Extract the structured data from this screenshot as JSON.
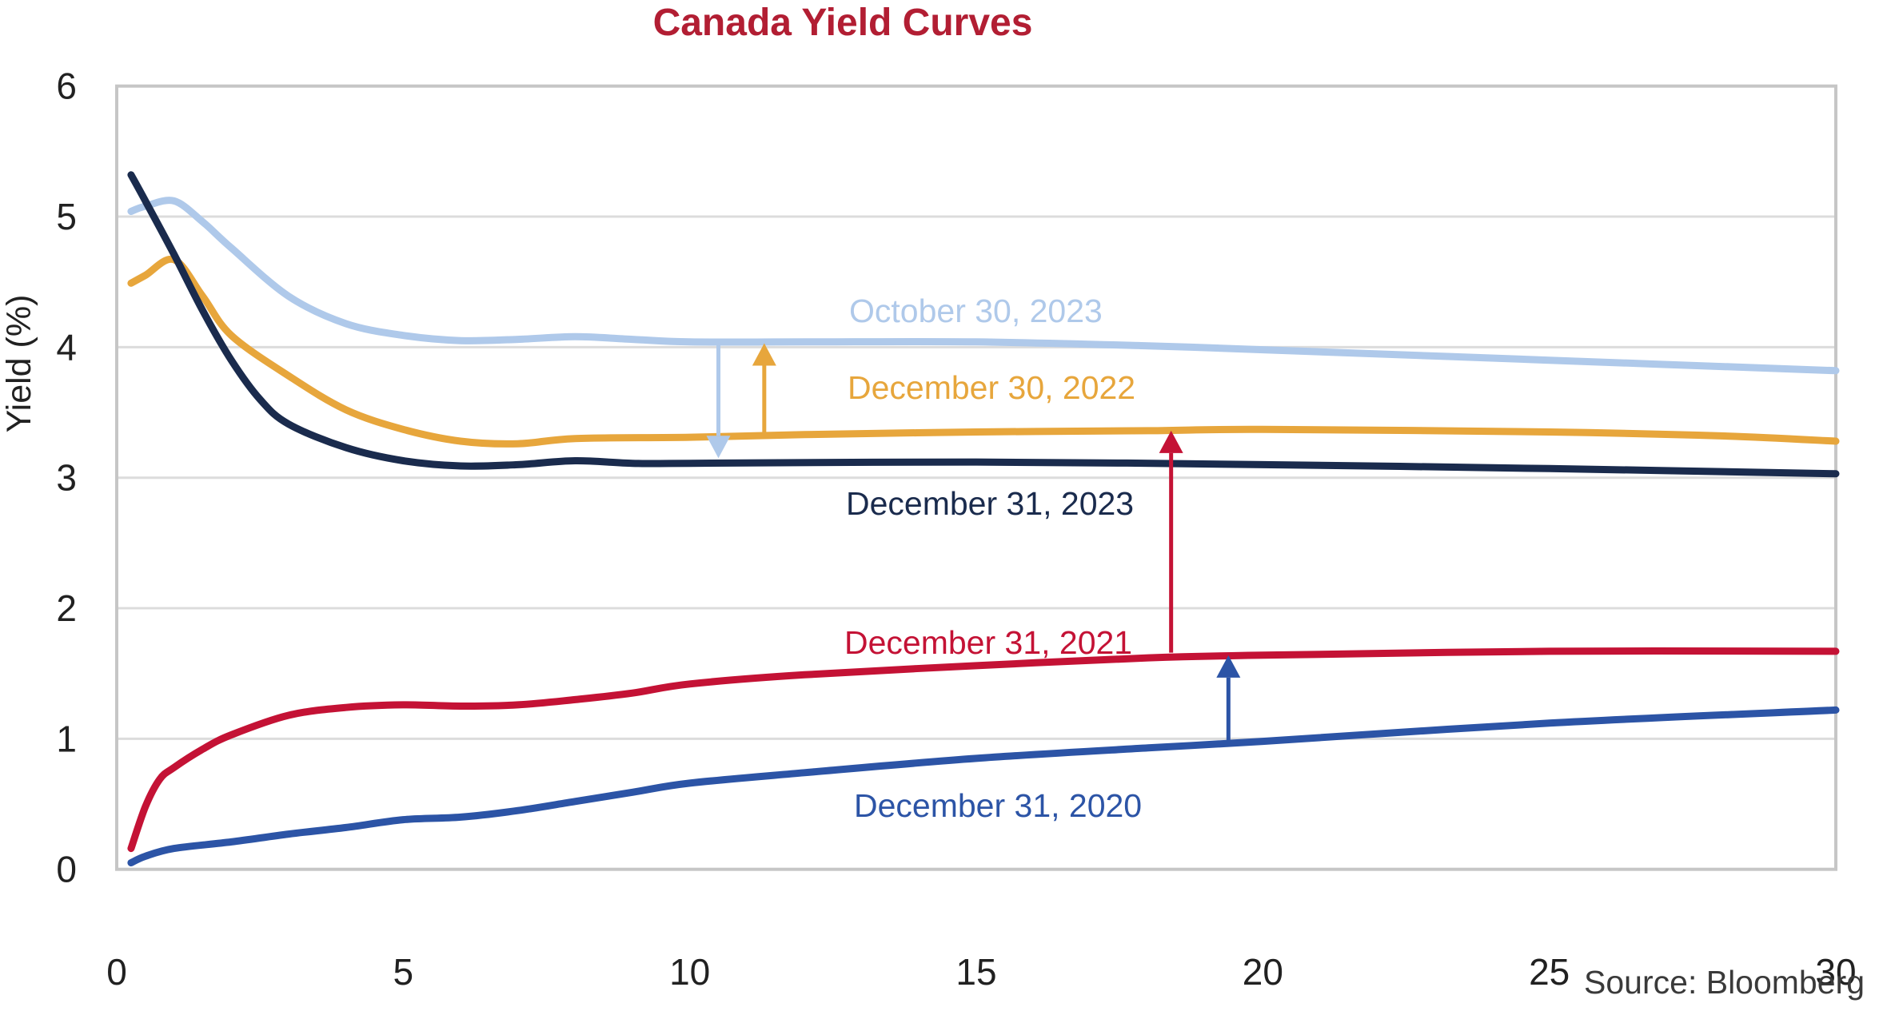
{
  "title": "Canada Yield Curves",
  "source": "Source: Bloomberg",
  "axes": {
    "ylabel": "Yield (%)",
    "x_ticks": [
      "0",
      "5",
      "10",
      "15",
      "20",
      "25",
      "30"
    ],
    "x_tick_values": [
      0,
      5,
      10,
      15,
      20,
      25,
      30
    ],
    "y_ticks": [
      "0",
      "1",
      "2",
      "3",
      "4",
      "5",
      "6"
    ],
    "y_tick_values": [
      0,
      1,
      2,
      3,
      4,
      5,
      6
    ]
  },
  "colors": {
    "title": "#B21E33",
    "light_blue": "#AFC9EA",
    "orange": "#E7A63C",
    "navy": "#1A2B4D",
    "red": "#C41235",
    "blue": "#2C54A6",
    "grid": "#DCDCDC",
    "border": "#C6C6C6",
    "tick_text": "#212121",
    "source_text": "#3A3A3A"
  },
  "chart_data": {
    "type": "line",
    "title": "Canada Yield Curves",
    "xlabel": "",
    "ylabel": "Yield (%)",
    "xlim": [
      0,
      30
    ],
    "ylim": [
      0,
      6
    ],
    "grid": "horizontal-only",
    "legend": "inline-labels",
    "series": [
      {
        "name": "October 30, 2023",
        "color_key": "light_blue",
        "points": [
          [
            0.25,
            5.04
          ],
          [
            0.5,
            5.08
          ],
          [
            1,
            5.12
          ],
          [
            1.5,
            4.96
          ],
          [
            2,
            4.76
          ],
          [
            3,
            4.39
          ],
          [
            4,
            4.18
          ],
          [
            5,
            4.09
          ],
          [
            6,
            4.05
          ],
          [
            7,
            4.06
          ],
          [
            8,
            4.08
          ],
          [
            9,
            4.06
          ],
          [
            10,
            4.04
          ],
          [
            12,
            4.04
          ],
          [
            15,
            4.04
          ],
          [
            18,
            4.01
          ],
          [
            20,
            3.98
          ],
          [
            25,
            3.9
          ],
          [
            30,
            3.82
          ]
        ]
      },
      {
        "name": "December 30, 2022",
        "color_key": "orange",
        "points": [
          [
            0.25,
            4.49
          ],
          [
            0.5,
            4.55
          ],
          [
            1,
            4.67
          ],
          [
            1.5,
            4.39
          ],
          [
            2,
            4.09
          ],
          [
            3,
            3.78
          ],
          [
            4,
            3.52
          ],
          [
            5,
            3.37
          ],
          [
            6,
            3.28
          ],
          [
            7,
            3.26
          ],
          [
            8,
            3.3
          ],
          [
            10,
            3.31
          ],
          [
            12,
            3.33
          ],
          [
            15,
            3.35
          ],
          [
            18,
            3.36
          ],
          [
            20,
            3.37
          ],
          [
            25,
            3.35
          ],
          [
            28,
            3.32
          ],
          [
            30,
            3.28
          ]
        ]
      },
      {
        "name": "December 31, 2023",
        "color_key": "navy",
        "points": [
          [
            0.25,
            5.32
          ],
          [
            0.5,
            5.12
          ],
          [
            1,
            4.71
          ],
          [
            1.5,
            4.28
          ],
          [
            2,
            3.9
          ],
          [
            2.5,
            3.6
          ],
          [
            3,
            3.41
          ],
          [
            4,
            3.23
          ],
          [
            5,
            3.13
          ],
          [
            6,
            3.09
          ],
          [
            7,
            3.1
          ],
          [
            8,
            3.13
          ],
          [
            9,
            3.11
          ],
          [
            10,
            3.11
          ],
          [
            15,
            3.12
          ],
          [
            20,
            3.1
          ],
          [
            25,
            3.07
          ],
          [
            30,
            3.03
          ]
        ]
      },
      {
        "name": "December 31, 2021",
        "color_key": "red",
        "points": [
          [
            0.25,
            0.16
          ],
          [
            0.5,
            0.48
          ],
          [
            0.75,
            0.69
          ],
          [
            1,
            0.78
          ],
          [
            1.5,
            0.92
          ],
          [
            2,
            1.03
          ],
          [
            3,
            1.18
          ],
          [
            4,
            1.24
          ],
          [
            5,
            1.26
          ],
          [
            6,
            1.25
          ],
          [
            7,
            1.26
          ],
          [
            8,
            1.3
          ],
          [
            9,
            1.35
          ],
          [
            10,
            1.42
          ],
          [
            12,
            1.49
          ],
          [
            15,
            1.56
          ],
          [
            18,
            1.62
          ],
          [
            20,
            1.64
          ],
          [
            25,
            1.67
          ],
          [
            30,
            1.67
          ]
        ]
      },
      {
        "name": "December 31, 2020",
        "color_key": "blue",
        "points": [
          [
            0.25,
            0.05
          ],
          [
            0.5,
            0.1
          ],
          [
            1,
            0.16
          ],
          [
            2,
            0.21
          ],
          [
            3,
            0.27
          ],
          [
            4,
            0.32
          ],
          [
            5,
            0.38
          ],
          [
            6,
            0.4
          ],
          [
            7,
            0.45
          ],
          [
            8,
            0.52
          ],
          [
            9,
            0.59
          ],
          [
            10,
            0.66
          ],
          [
            12,
            0.74
          ],
          [
            15,
            0.85
          ],
          [
            18,
            0.93
          ],
          [
            20,
            0.98
          ],
          [
            25,
            1.12
          ],
          [
            30,
            1.22
          ]
        ]
      }
    ],
    "annotations": {
      "arrows": [
        {
          "color_key": "light_blue",
          "x": 10.5,
          "y_from": 4.03,
          "y_to": 3.15,
          "direction": "down"
        },
        {
          "color_key": "orange",
          "x": 11.3,
          "y_from": 3.32,
          "y_to": 4.03,
          "direction": "up"
        },
        {
          "color_key": "red",
          "x": 18.4,
          "y_from": 1.66,
          "y_to": 3.36,
          "direction": "up"
        },
        {
          "color_key": "blue",
          "x": 19.4,
          "y_from": 0.97,
          "y_to": 1.64,
          "direction": "up"
        }
      ]
    }
  }
}
